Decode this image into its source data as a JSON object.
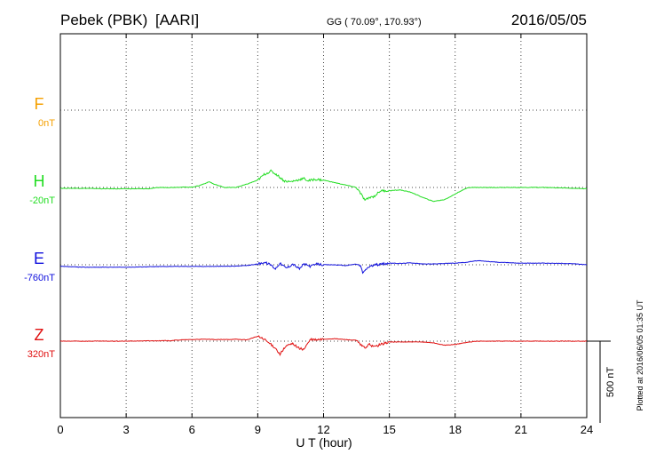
{
  "header": {
    "station": "Pebek (PBK)",
    "network": "[AARI]",
    "coords": "GG ( 70.09°, 170.93°)",
    "date": "2016/05/05"
  },
  "footer": {
    "plotted": "Plotted at 2016/06/05 01:35 UT"
  },
  "chart_data": {
    "type": "line",
    "xlabel": "U T (hour)",
    "xlim": [
      0,
      24
    ],
    "xticks": [
      0,
      3,
      6,
      9,
      12,
      15,
      18,
      21,
      24
    ],
    "scale_bar": {
      "label": "500 nT",
      "value_nT": 500
    },
    "grid": true,
    "series": [
      {
        "name": "F",
        "baseline_label": "0nT",
        "color": "#f5a000",
        "values": []
      },
      {
        "name": "H",
        "baseline_label": "-20nT",
        "color": "#22dd22",
        "x": [
          0,
          1,
          2,
          3,
          4,
          4.5,
          5,
          5.5,
          6,
          6.3,
          6.6,
          6.8,
          7,
          7.5,
          8,
          8.5,
          9,
          9.3,
          9.6,
          9.9,
          10.2,
          10.5,
          10.8,
          11.1,
          11.3,
          11.6,
          12,
          12.5,
          13,
          13.5,
          13.7,
          13.9,
          14.1,
          14.3,
          14.6,
          15,
          15.5,
          16,
          16.5,
          17,
          17.5,
          17.8,
          18.2,
          18.6,
          19,
          20,
          21,
          22,
          23,
          24
        ],
        "values": [
          -5,
          -5,
          -8,
          -8,
          -8,
          0,
          0,
          2,
          2,
          10,
          25,
          35,
          20,
          0,
          0,
          20,
          45,
          80,
          100,
          75,
          40,
          35,
          45,
          55,
          40,
          50,
          45,
          30,
          15,
          0,
          -40,
          -80,
          -60,
          -55,
          -20,
          -20,
          -15,
          -30,
          -60,
          -85,
          -75,
          -55,
          -25,
          0,
          0,
          0,
          0,
          0,
          -3,
          -8
        ]
      },
      {
        "name": "E",
        "baseline_label": "-760nT",
        "color": "#1010dd",
        "x": [
          0,
          1,
          2,
          3,
          4,
          5,
          6,
          7,
          8,
          8.5,
          9,
          9.3,
          9.6,
          9.8,
          10,
          10.3,
          10.6,
          10.9,
          11.1,
          11.4,
          11.7,
          12,
          12.5,
          13,
          13.5,
          13.7,
          13.8,
          13.9,
          14.1,
          14.4,
          14.7,
          15,
          15.5,
          16,
          16.5,
          17,
          17.5,
          18,
          18.5,
          19,
          19.5,
          20,
          21,
          22,
          23,
          23.5,
          24
        ],
        "values": [
          -10,
          -15,
          -15,
          -15,
          -12,
          -10,
          -10,
          -10,
          -8,
          -5,
          5,
          15,
          0,
          -25,
          10,
          -20,
          5,
          -25,
          5,
          -10,
          5,
          0,
          0,
          -5,
          5,
          -10,
          -55,
          -30,
          -10,
          0,
          5,
          10,
          8,
          12,
          5,
          5,
          8,
          10,
          15,
          25,
          20,
          15,
          10,
          10,
          8,
          5,
          0
        ]
      },
      {
        "name": "Z",
        "baseline_label": "320nT",
        "color": "#e01010",
        "x": [
          0,
          1,
          2,
          3,
          4,
          5,
          5.5,
          6,
          6.5,
          7,
          7.5,
          8,
          8.5,
          9,
          9.3,
          9.6,
          9.8,
          10,
          10.3,
          10.6,
          10.9,
          11.1,
          11.4,
          11.7,
          12,
          12.5,
          13,
          13.5,
          13.7,
          13.9,
          14.1,
          14.3,
          14.6,
          15,
          15.5,
          16,
          16.5,
          17,
          17.5,
          18,
          18.5,
          19,
          20,
          21,
          22,
          23,
          24
        ],
        "values": [
          0,
          0,
          0,
          0,
          2,
          3,
          8,
          10,
          12,
          10,
          10,
          12,
          8,
          30,
          10,
          -20,
          -40,
          -80,
          -30,
          -15,
          -45,
          -50,
          10,
          8,
          12,
          15,
          10,
          5,
          -25,
          -40,
          -20,
          -35,
          -20,
          -5,
          -5,
          -5,
          -5,
          -10,
          -25,
          -20,
          -8,
          0,
          0,
          0,
          0,
          0,
          0
        ]
      }
    ]
  }
}
